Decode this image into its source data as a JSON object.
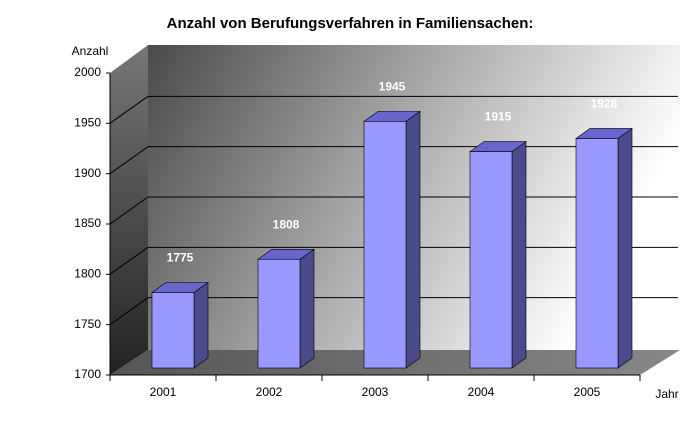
{
  "chart_data": {
    "type": "bar3d",
    "title": "Anzahl von Berufungsverfahren in Familiensachen:",
    "y_label": "Anzahl",
    "x_label": "Jahr",
    "categories": [
      "2001",
      "2002",
      "2003",
      "2004",
      "2005"
    ],
    "values": [
      1775,
      1808,
      1945,
      1915,
      1928
    ],
    "color": "#9999ff",
    "ylim": [
      1700,
      2000
    ],
    "yticks": [
      1700,
      1750,
      1800,
      1850,
      1900,
      1950,
      2000
    ],
    "grid": true
  }
}
